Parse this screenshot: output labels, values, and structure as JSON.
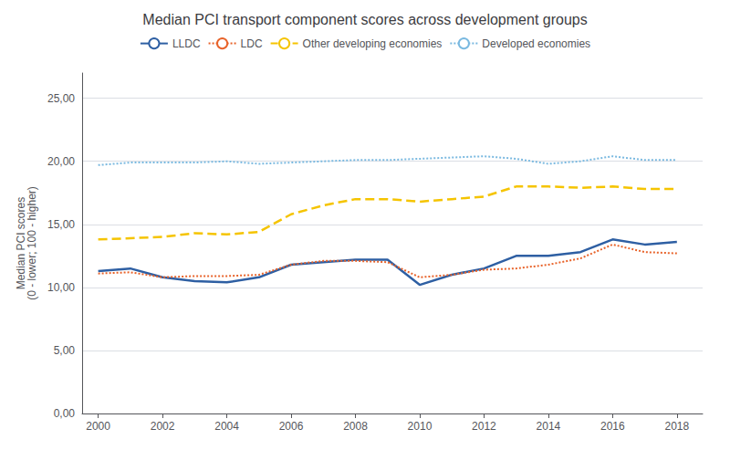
{
  "chart_data": {
    "type": "line",
    "title": "Median PCI transport component scores across development groups",
    "ylabel": "Median PCI scores\n(0 - lower; 100 - higher)",
    "x": [
      2000,
      2001,
      2002,
      2003,
      2004,
      2005,
      2006,
      2007,
      2008,
      2009,
      2010,
      2011,
      2012,
      2013,
      2014,
      2015,
      2016,
      2017,
      2018
    ],
    "series": [
      {
        "name": "LLDC",
        "color": "#2e5fa3",
        "line_style": "solid",
        "values": [
          11.3,
          11.5,
          10.8,
          10.5,
          10.4,
          10.8,
          11.8,
          12.0,
          12.2,
          12.2,
          10.2,
          11.0,
          11.5,
          12.5,
          12.5,
          12.8,
          13.8,
          13.4,
          13.6
        ]
      },
      {
        "name": "LDC",
        "color": "#e8632a",
        "line_style": "dotted",
        "values": [
          11.1,
          11.2,
          10.8,
          10.9,
          10.9,
          11.0,
          11.8,
          12.1,
          12.1,
          12.0,
          10.8,
          11.0,
          11.4,
          11.5,
          11.8,
          12.3,
          13.4,
          12.8,
          12.7
        ]
      },
      {
        "name": "Other developing economies",
        "color": "#f5c400",
        "line_style": "dashed",
        "values": [
          13.8,
          13.9,
          14.0,
          14.3,
          14.2,
          14.4,
          15.8,
          16.5,
          17.0,
          17.0,
          16.8,
          17.0,
          17.2,
          18.0,
          18.0,
          17.9,
          18.0,
          17.8,
          17.8
        ]
      },
      {
        "name": "Developed economies",
        "color": "#7ab9e0",
        "line_style": "dotted",
        "values": [
          19.7,
          19.9,
          19.9,
          19.9,
          20.0,
          19.8,
          19.9,
          20.0,
          20.1,
          20.1,
          20.2,
          20.3,
          20.4,
          20.2,
          19.8,
          20.0,
          20.4,
          20.1,
          20.1
        ]
      }
    ],
    "xlim": [
      1999.5,
      2018.8
    ],
    "xticks": [
      2000,
      2002,
      2004,
      2006,
      2008,
      2010,
      2012,
      2014,
      2016,
      2018
    ],
    "ylim": [
      0,
      27
    ],
    "yticks": [
      {
        "value": 0,
        "label": "0,00"
      },
      {
        "value": 5,
        "label": "5,00"
      },
      {
        "value": 10,
        "label": "10,00"
      },
      {
        "value": 15,
        "label": "15,00"
      },
      {
        "value": 20,
        "label": "20,00"
      },
      {
        "value": 25,
        "label": "25,00"
      }
    ],
    "grid": true,
    "legend": "top"
  }
}
